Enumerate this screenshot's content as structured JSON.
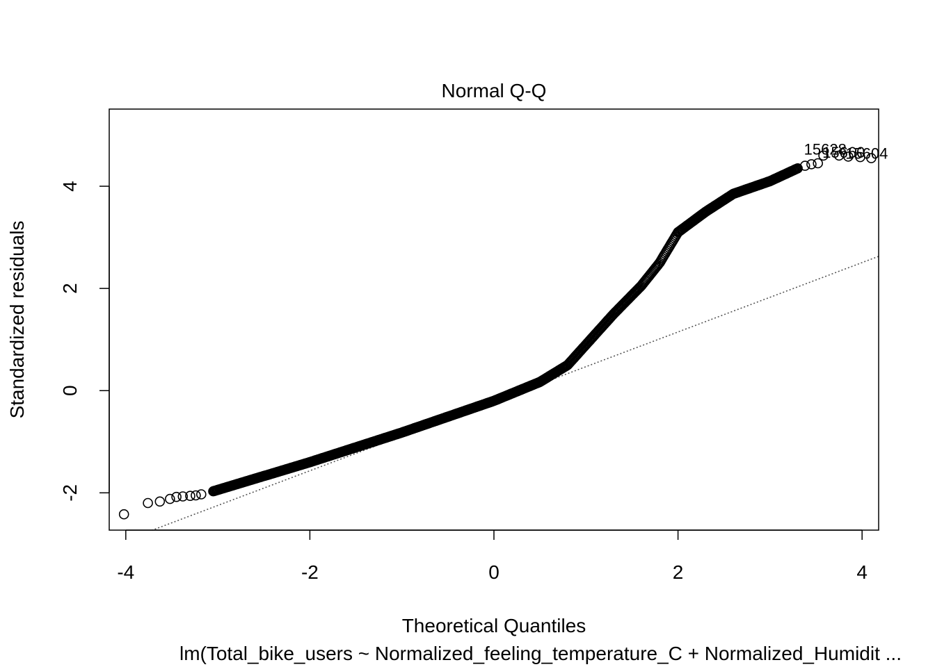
{
  "chart_data": {
    "type": "scatter",
    "title": "Normal Q-Q",
    "xlabel": "Theoretical Quantiles",
    "ylabel": "Standardized residuals",
    "subtitle": "lm(Total_bike_users ~ Normalized_feeling_temperature_C + Normalized_Humidit ...",
    "xlim": [
      -4.18,
      4.18
    ],
    "ylim": [
      -2.73,
      5.51
    ],
    "xticks": [
      -4,
      -2,
      0,
      2,
      4
    ],
    "yticks": [
      -2,
      0,
      2,
      4
    ],
    "grid": false,
    "reference_line": {
      "slope": 0.679,
      "intercept": -0.21,
      "style": "dotted"
    },
    "curve_knots": [
      [
        -3.05,
        -1.97
      ],
      [
        -2.0,
        -1.4
      ],
      [
        -1.0,
        -0.82
      ],
      [
        0.0,
        -0.2
      ],
      [
        0.5,
        0.17
      ],
      [
        0.8,
        0.5
      ],
      [
        1.0,
        0.9
      ],
      [
        1.3,
        1.5
      ],
      [
        1.6,
        2.05
      ],
      [
        1.8,
        2.5
      ],
      [
        2.0,
        3.1
      ],
      [
        2.3,
        3.5
      ],
      [
        2.6,
        3.85
      ],
      [
        3.0,
        4.1
      ],
      [
        3.3,
        4.35
      ]
    ],
    "extreme_points": [
      [
        -4.02,
        -2.42
      ],
      [
        -3.76,
        -2.2
      ],
      [
        -3.63,
        -2.17
      ],
      [
        -3.52,
        -2.12
      ],
      [
        -3.45,
        -2.08
      ],
      [
        -3.38,
        -2.07
      ],
      [
        -3.3,
        -2.06
      ],
      [
        -3.24,
        -2.05
      ],
      [
        -3.18,
        -2.03
      ],
      [
        3.38,
        4.4
      ],
      [
        3.45,
        4.43
      ],
      [
        3.52,
        4.45
      ],
      [
        3.58,
        4.6
      ],
      [
        3.75,
        4.6
      ],
      [
        3.85,
        4.58
      ],
      [
        3.98,
        4.57
      ],
      [
        4.1,
        4.55
      ]
    ],
    "point_labels": [
      {
        "text": "15628",
        "x": 3.6,
        "y": 4.62
      },
      {
        "text": "15660",
        "x": 3.8,
        "y": 4.56
      },
      {
        "text": "15604",
        "x": 4.05,
        "y": 4.54
      }
    ]
  }
}
